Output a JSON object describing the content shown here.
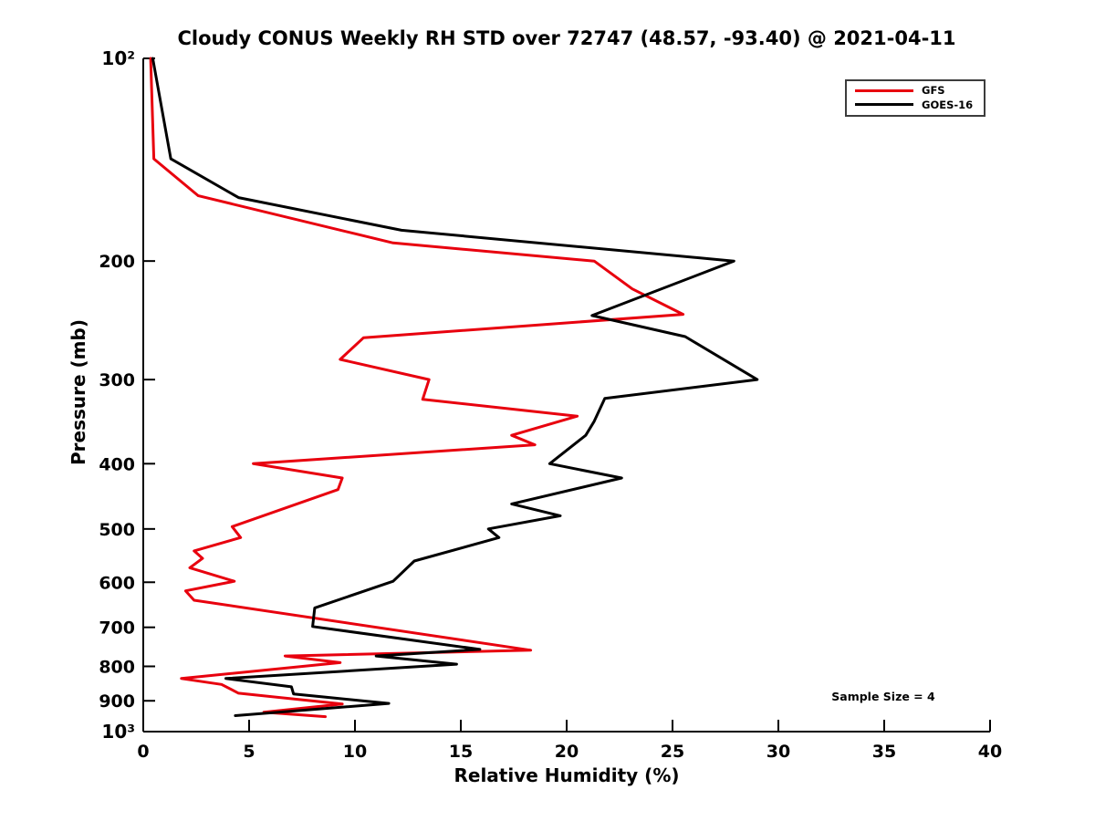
{
  "chart_data": {
    "type": "line",
    "title": "Cloudy CONUS Weekly RH STD over 72747 (48.57, -93.40) @ 2021-04-11",
    "xlabel": "Relative Humidity (%)",
    "ylabel": "Pressure (mb)",
    "xlim": [
      0,
      40
    ],
    "ylim": [
      100,
      1000
    ],
    "y_scale": "log",
    "y_axis_inverted": true,
    "grid": false,
    "legend_position": "top-right",
    "x_ticks": [
      0,
      5,
      10,
      15,
      20,
      25,
      30,
      35,
      40
    ],
    "x_tick_labels": [
      "0",
      "5",
      "10",
      "15",
      "20",
      "25",
      "30",
      "35",
      "40"
    ],
    "y_ticks": [
      100,
      200,
      300,
      400,
      500,
      600,
      700,
      800,
      900,
      1000
    ],
    "y_tick_labels": [
      "10²",
      "200",
      "300",
      "400",
      "500",
      "600",
      "700",
      "800",
      "900",
      "10³"
    ],
    "series": [
      {
        "name": "GFS",
        "color": "#e8000e",
        "points_format": [
          "relative_humidity_std_percent",
          "pressure_mb"
        ],
        "points": [
          [
            0.35,
            100
          ],
          [
            0.5,
            141
          ],
          [
            2.6,
            160
          ],
          [
            11.8,
            188
          ],
          [
            21.3,
            200
          ],
          [
            23.1,
            220
          ],
          [
            25.5,
            240
          ],
          [
            10.4,
            260
          ],
          [
            9.3,
            280
          ],
          [
            13.5,
            300
          ],
          [
            13.2,
            321
          ],
          [
            20.5,
            340
          ],
          [
            17.4,
            363
          ],
          [
            18.5,
            375
          ],
          [
            5.2,
            400
          ],
          [
            9.4,
            420
          ],
          [
            9.2,
            437
          ],
          [
            4.2,
            496
          ],
          [
            4.6,
            515
          ],
          [
            2.4,
            539
          ],
          [
            2.8,
            553
          ],
          [
            2.2,
            571
          ],
          [
            4.3,
            598
          ],
          [
            2.0,
            618
          ],
          [
            2.4,
            638
          ],
          [
            18.3,
            757
          ],
          [
            6.7,
            772
          ],
          [
            9.3,
            790
          ],
          [
            1.8,
            834
          ],
          [
            3.7,
            851
          ],
          [
            4.5,
            877
          ],
          [
            9.4,
            910
          ],
          [
            5.7,
            936
          ],
          [
            8.6,
            950
          ]
        ]
      },
      {
        "name": "GOES-16",
        "color": "#000000",
        "points_format": [
          "relative_humidity_std_percent",
          "pressure_mb"
        ],
        "points": [
          [
            0.45,
            100
          ],
          [
            1.3,
            141
          ],
          [
            4.5,
            161
          ],
          [
            12.2,
            180
          ],
          [
            27.9,
            200
          ],
          [
            21.2,
            241
          ],
          [
            25.6,
            259
          ],
          [
            29.0,
            300
          ],
          [
            21.8,
            320
          ],
          [
            21.3,
            346
          ],
          [
            20.9,
            363
          ],
          [
            19.2,
            400
          ],
          [
            22.6,
            420
          ],
          [
            17.4,
            459
          ],
          [
            19.7,
            478
          ],
          [
            16.3,
            500
          ],
          [
            16.8,
            515
          ],
          [
            12.8,
            558
          ],
          [
            11.8,
            598
          ],
          [
            8.1,
            655
          ],
          [
            8.0,
            698
          ],
          [
            15.9,
            755
          ],
          [
            11.0,
            772
          ],
          [
            14.8,
            794
          ],
          [
            3.9,
            834
          ],
          [
            7.0,
            858
          ],
          [
            7.1,
            879
          ],
          [
            11.6,
            908
          ],
          [
            4.35,
            947
          ]
        ]
      }
    ],
    "annotations": [
      {
        "text": "Sample Size = 4"
      }
    ]
  },
  "legend": {
    "items": [
      {
        "label": "GFS",
        "color": "#e8000e"
      },
      {
        "label": "GOES-16",
        "color": "#000000"
      }
    ]
  }
}
